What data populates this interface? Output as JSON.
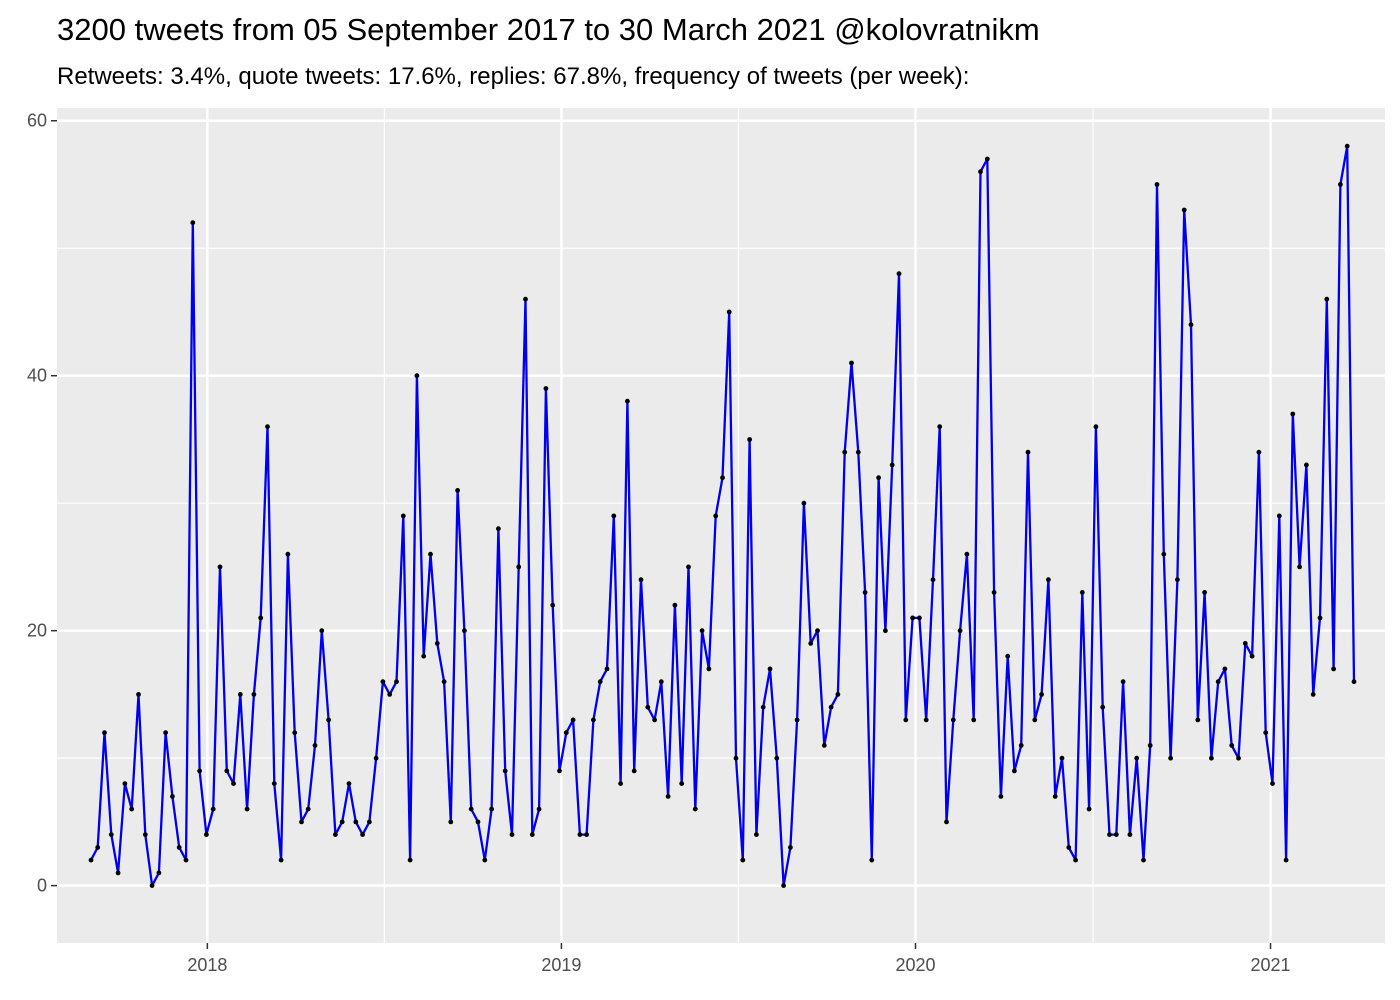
{
  "header": {
    "title": "3200 tweets from 05 September 2017 to 30 March 2021 @kolovratnikm",
    "subtitle": "Retweets: 3.4%, quote tweets: 17.6%, replies: 67.8%, frequency of tweets (per week):"
  },
  "colors": {
    "panel_background": "#ebebeb",
    "grid": "#ffffff",
    "line": "#0000ee",
    "point": "#000000",
    "tick_label": "#4d4d4d"
  },
  "chart_data": {
    "type": "line",
    "x_axis_type": "date",
    "xlim": [
      "2017-07-30",
      "2021-04-29"
    ],
    "ylim": [
      -4.5,
      61
    ],
    "x_ticks": [
      {
        "date": "2018-01-01",
        "label": "2018"
      },
      {
        "date": "2019-01-01",
        "label": "2019"
      },
      {
        "date": "2020-01-01",
        "label": "2020"
      },
      {
        "date": "2021-01-01",
        "label": "2021"
      }
    ],
    "y_ticks": [
      0,
      20,
      40,
      60
    ],
    "grid": true,
    "series": [
      {
        "start_date": "2017-09-03",
        "interval": "week",
        "values": [
          2,
          3,
          12,
          4,
          1,
          8,
          6,
          15,
          4,
          0,
          1,
          12,
          7,
          3,
          2,
          52,
          9,
          4,
          6,
          25,
          9,
          8,
          15,
          6,
          15,
          21,
          36,
          8,
          2,
          26,
          12,
          5,
          6,
          11,
          20,
          13,
          4,
          5,
          8,
          5,
          4,
          5,
          10,
          16,
          15,
          16,
          29,
          2,
          40,
          18,
          26,
          19,
          16,
          5,
          31,
          20,
          6,
          5,
          2,
          6,
          28,
          9,
          4,
          25,
          46,
          4,
          6,
          39,
          22,
          9,
          12,
          13,
          4,
          4,
          13,
          16,
          17,
          29,
          8,
          38,
          9,
          24,
          14,
          13,
          16,
          7,
          22,
          8,
          25,
          6,
          20,
          17,
          29,
          32,
          45,
          10,
          2,
          35,
          4,
          14,
          17,
          10,
          0,
          3,
          13,
          30,
          19,
          20,
          11,
          14,
          15,
          34,
          41,
          34,
          23,
          2,
          32,
          20,
          33,
          48,
          13,
          21,
          21,
          13,
          24,
          36,
          5,
          13,
          20,
          26,
          13,
          56,
          57,
          23,
          7,
          18,
          9,
          11,
          34,
          13,
          15,
          24,
          7,
          10,
          3,
          2,
          23,
          6,
          36,
          14,
          4,
          4,
          16,
          4,
          10,
          2,
          11,
          55,
          26,
          10,
          24,
          53,
          44,
          13,
          23,
          10,
          16,
          17,
          11,
          10,
          19,
          18,
          34,
          12,
          8,
          29,
          2,
          37,
          25,
          33,
          15,
          21,
          46,
          17,
          55,
          58,
          16
        ]
      }
    ]
  }
}
